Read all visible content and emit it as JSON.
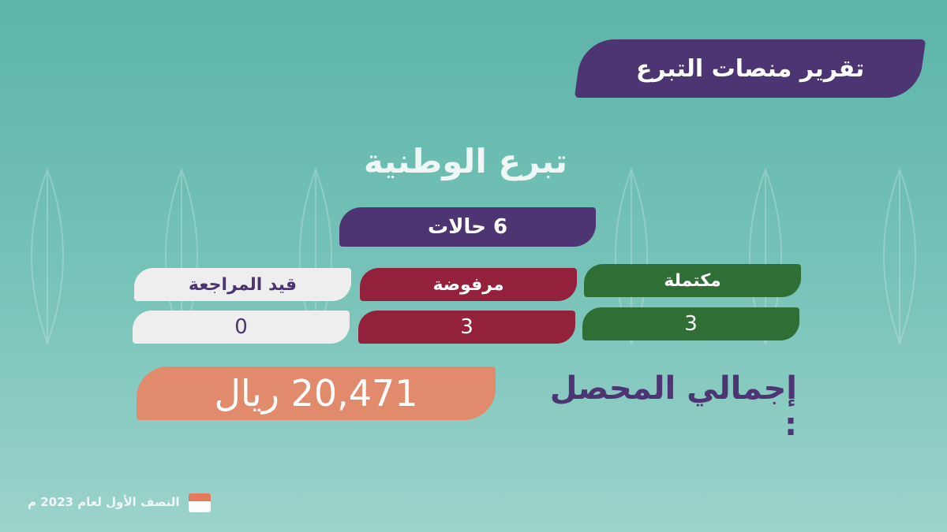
{
  "title": "تقرير منصات التبرع",
  "platform_name": "تبرع الوطنية",
  "cases": "6 حالات",
  "statuses": [
    {
      "label": "مكتملة",
      "value": "3",
      "color": "#2f6e34"
    },
    {
      "label": "مرفوضة",
      "value": "3",
      "color": "#93213b"
    },
    {
      "label": "قيد المراجعة",
      "value": "0",
      "color": "#eeeeee"
    }
  ],
  "total_label": "إجمالي المحصل :",
  "total_value": "20,471 ريال",
  "footer": {
    "period": "النصف الأول لعام 2023 م",
    "icon": "calendar-icon"
  },
  "colors": {
    "purple": "#4c3572",
    "orange": "#e28b6c",
    "teal": "#5cb4a9"
  }
}
